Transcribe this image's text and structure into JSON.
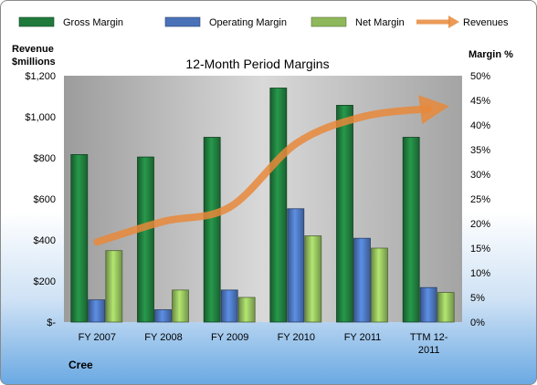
{
  "chart_data": {
    "type": "bar",
    "title": "12-Month Period Margins",
    "company": "Cree",
    "categories": [
      "FY 2007",
      "FY 2008",
      "FY 2009",
      "FY 2010",
      "FY 2011",
      "TTM 12-2011"
    ],
    "y_left": {
      "label_line1": "Revenue",
      "label_line2": "$millions",
      "range": [
        0,
        1200
      ],
      "tick_labels": [
        "$-",
        "$200",
        "$400",
        "$600",
        "$800",
        "$1,000",
        "$1,200"
      ]
    },
    "y_right": {
      "label": "Margin %",
      "range": [
        0,
        50
      ],
      "tick_labels": [
        "0%",
        "5%",
        "10%",
        "15%",
        "20%",
        "25%",
        "30%",
        "35%",
        "40%",
        "45%",
        "50%"
      ]
    },
    "series": [
      {
        "name": "Gross Margin",
        "kind": "bar",
        "axis": "right",
        "color": "#1f7a3c",
        "values": [
          34,
          33.5,
          37.5,
          47.5,
          44,
          37.5
        ]
      },
      {
        "name": "Operating Margin",
        "kind": "bar",
        "axis": "right",
        "color": "#4a72b8",
        "values": [
          4.5,
          2.5,
          6.5,
          23,
          17,
          7
        ]
      },
      {
        "name": "Net Margin",
        "kind": "bar",
        "axis": "right",
        "color": "#8fb85a",
        "values": [
          14.5,
          6.5,
          5,
          17.5,
          15,
          6
        ]
      },
      {
        "name": "Revenues",
        "kind": "line",
        "axis": "left",
        "color": "#e8883a",
        "values": [
          390,
          490,
          560,
          870,
          1000,
          1040
        ]
      }
    ],
    "legend_position": "top",
    "grid": false
  }
}
